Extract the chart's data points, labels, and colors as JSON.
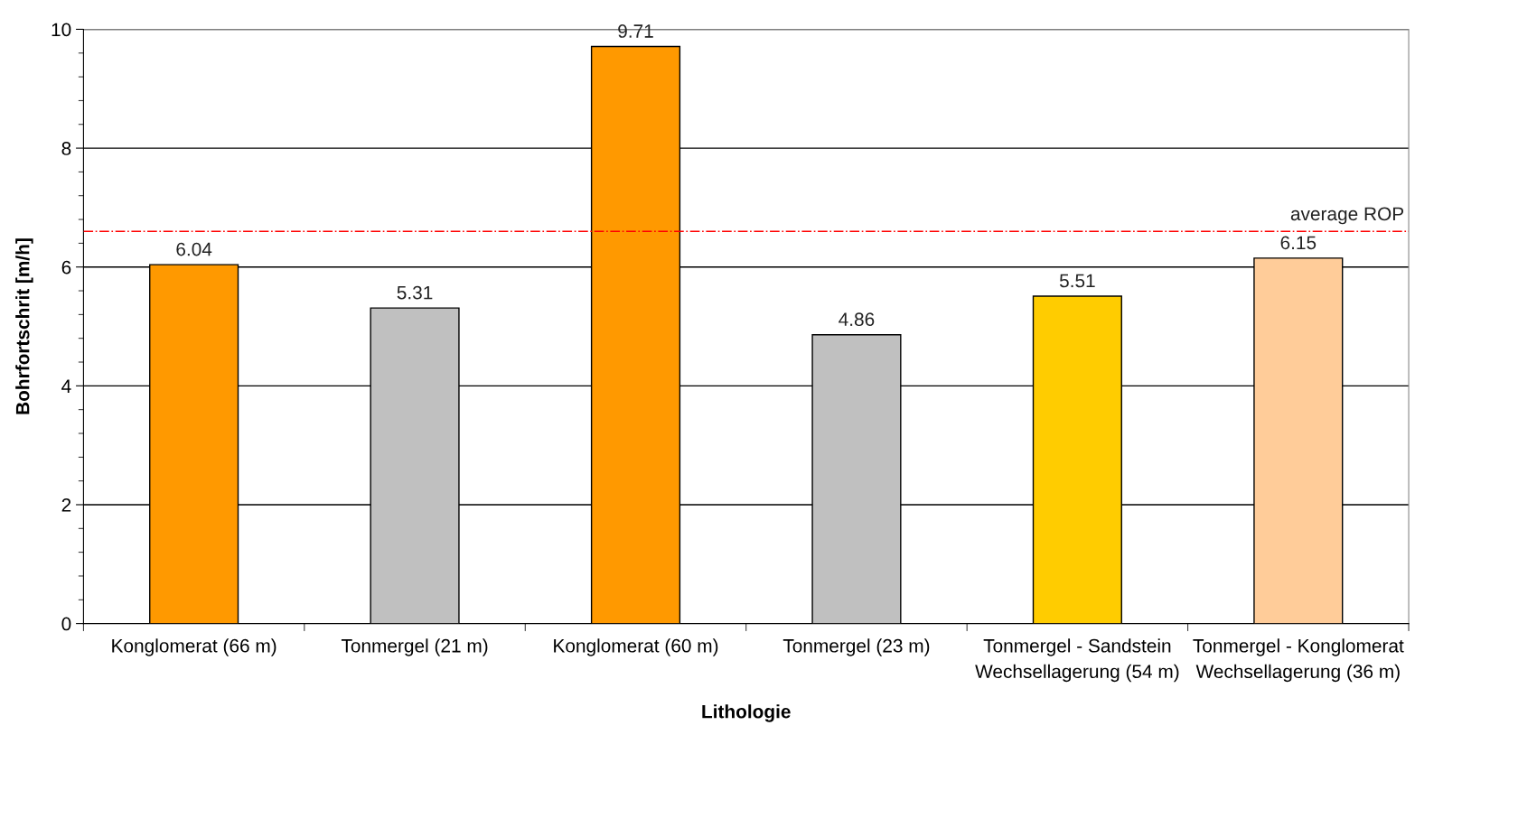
{
  "chart_data": {
    "type": "bar",
    "xlabel": "Lithologie",
    "ylabel": "Bohrfortschrit [m/h]",
    "categories": [
      "Konglomerat (66 m)",
      "Tonmergel (21 m)",
      "Konglomerat (60 m)",
      "Tonmergel (23 m)",
      "Tonmergel - Sandstein Wechsellagerung (54 m)",
      "Tonmergel - Konglomerat Wechsellagerung (36 m)"
    ],
    "values": [
      6.04,
      5.31,
      9.71,
      4.86,
      5.51,
      6.15
    ],
    "colors": [
      "#ff9900",
      "#c0c0c0",
      "#ff9900",
      "#c0c0c0",
      "#ffcc00",
      "#ffcc99"
    ],
    "data_labels": true,
    "ylim": [
      0,
      10
    ],
    "yticks": [
      0,
      2,
      4,
      6,
      8,
      10
    ],
    "grid": "y",
    "ref_lines": [
      {
        "axis": "y",
        "value": 6.6,
        "label": "average ROP",
        "color": "#ff0000",
        "line_style": "dashdot"
      }
    ]
  }
}
